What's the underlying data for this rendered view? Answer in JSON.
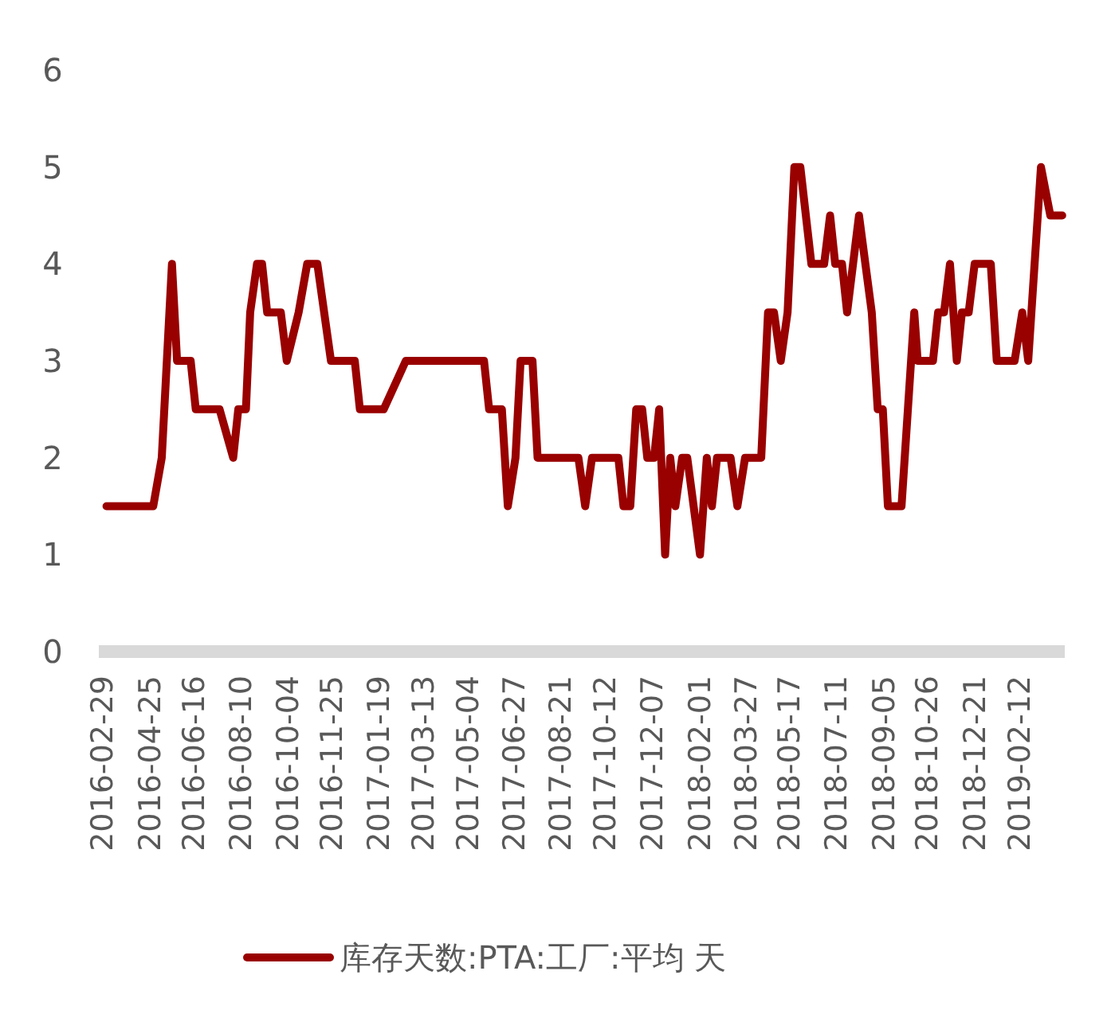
{
  "chart_data": {
    "type": "line",
    "x": [
      "2016-03-06",
      "2016-04-30",
      "2016-05-10",
      "2016-05-22",
      "2016-05-28",
      "2016-06-13",
      "2016-06-19",
      "2016-07-17",
      "2016-08-02",
      "2016-08-08",
      "2016-08-17",
      "2016-08-22",
      "2016-08-30",
      "2016-09-05",
      "2016-09-11",
      "2016-09-27",
      "2016-10-04",
      "2016-10-18",
      "2016-10-28",
      "2016-11-09",
      "2016-11-25",
      "2016-12-23",
      "2016-12-29",
      "2017-01-26",
      "2017-02-21",
      "2017-05-24",
      "2017-05-30",
      "2017-06-14",
      "2017-06-21",
      "2017-06-30",
      "2017-07-06",
      "2017-07-20",
      "2017-07-26",
      "2017-09-12",
      "2017-09-20",
      "2017-09-28",
      "2017-10-29",
      "2017-11-04",
      "2017-11-12",
      "2017-11-19",
      "2017-11-26",
      "2017-12-02",
      "2017-12-10",
      "2017-12-16",
      "2017-12-23",
      "2017-12-29",
      "2018-01-04",
      "2018-01-12",
      "2018-01-18",
      "2018-02-02",
      "2018-02-10",
      "2018-02-16",
      "2018-02-22",
      "2018-03-10",
      "2018-03-18",
      "2018-03-27",
      "2018-04-15",
      "2018-04-23",
      "2018-04-30",
      "2018-05-08",
      "2018-05-16",
      "2018-05-24",
      "2018-05-31",
      "2018-06-13",
      "2018-06-28",
      "2018-07-05",
      "2018-07-11",
      "2018-07-19",
      "2018-07-25",
      "2018-08-08",
      "2018-08-23",
      "2018-08-30",
      "2018-09-05",
      "2018-09-11",
      "2018-09-27",
      "2018-10-12",
      "2018-10-16",
      "2018-11-03",
      "2018-11-09",
      "2018-11-16",
      "2018-11-23",
      "2018-12-01",
      "2018-12-07",
      "2018-12-15",
      "2018-12-22",
      "2019-01-10",
      "2019-01-17",
      "2019-02-07",
      "2019-02-16",
      "2019-02-23",
      "2019-03-10",
      "2019-03-21",
      "2019-04-04"
    ],
    "series": [
      {
        "name": "库存天数:PTA:工厂:平均 天",
        "color": "#990000",
        "values": [
          1.5,
          1.5,
          2,
          4,
          3,
          3,
          2.5,
          2.5,
          2,
          2.5,
          2.5,
          3.5,
          4,
          4,
          3.5,
          3.5,
          3,
          3.5,
          4,
          4,
          3,
          3,
          2.5,
          2.5,
          3,
          3,
          2.5,
          2.5,
          1.5,
          2,
          3,
          3,
          2,
          2,
          1.5,
          2,
          2,
          1.5,
          1.5,
          2.5,
          2.5,
          2,
          2,
          2.5,
          1,
          2,
          1.5,
          2,
          2,
          1,
          2,
          1.5,
          2,
          2,
          1.5,
          2,
          2,
          3.5,
          3.5,
          3,
          3.5,
          5,
          5,
          4,
          4,
          4.5,
          4,
          4,
          3.5,
          4.5,
          3.5,
          2.5,
          2.5,
          1.5,
          1.5,
          3.5,
          3,
          3,
          3.5,
          3.5,
          4,
          3,
          3.5,
          3.5,
          4,
          4,
          3,
          3,
          3.5,
          3,
          5,
          4.5,
          4.5
        ]
      }
    ],
    "xlim": [
      "2016-02-26",
      "2019-04-07"
    ],
    "xticks": [
      "2016-02-29",
      "2016-04-25",
      "2016-06-16",
      "2016-08-10",
      "2016-10-04",
      "2016-11-25",
      "2017-01-19",
      "2017-03-13",
      "2017-05-04",
      "2017-06-27",
      "2017-08-21",
      "2017-10-12",
      "2017-12-07",
      "2018-02-01",
      "2018-03-27",
      "2018-05-17",
      "2018-07-11",
      "2018-09-05",
      "2018-10-26",
      "2018-12-21",
      "2019-02-12"
    ],
    "ylim": [
      0,
      6
    ],
    "yticks": [
      0,
      1,
      2,
      3,
      4,
      5,
      6
    ],
    "legend": "bottom"
  }
}
